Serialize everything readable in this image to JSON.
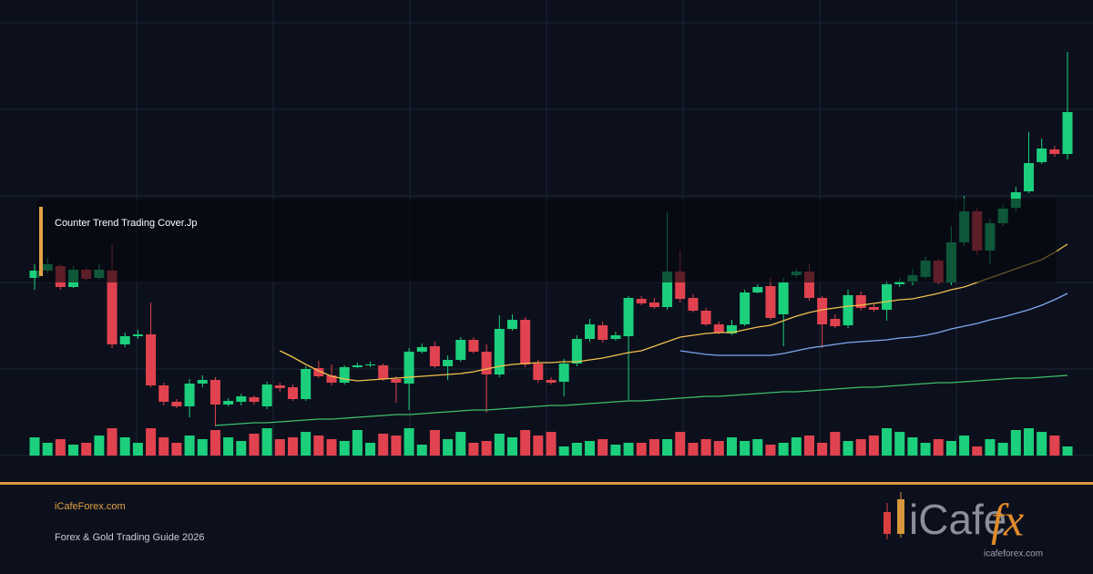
{
  "chart_data": {
    "type": "candlestick",
    "title": "Counter Trend Trading Cover.Jp",
    "categories": [
      null,
      null,
      null,
      null,
      null,
      null,
      null,
      null,
      null,
      null,
      null,
      null,
      null,
      null,
      null,
      null,
      null,
      null,
      null,
      null,
      null,
      null,
      null,
      null,
      null,
      null,
      null,
      null,
      null,
      null,
      null,
      null,
      null,
      null,
      null,
      null,
      null,
      null,
      null,
      null,
      null,
      null,
      null,
      null,
      null,
      null,
      null,
      null,
      null,
      null,
      null,
      null,
      null,
      null,
      null,
      null,
      null,
      null,
      null,
      null,
      null,
      null,
      null,
      null,
      null,
      null,
      null,
      null,
      null,
      null,
      null,
      null,
      null,
      null,
      null,
      null,
      null,
      null,
      null,
      null,
      null
    ],
    "ylim": [
      0,
      500
    ],
    "up_color": "#1ccf7c",
    "down_color": "#e0434f",
    "ohlc": [
      [
        195,
        210,
        182,
        203
      ],
      [
        203,
        217,
        200,
        210
      ],
      [
        208,
        210,
        182,
        185
      ],
      [
        185,
        208,
        184,
        204
      ],
      [
        204,
        206,
        192,
        194
      ],
      [
        195,
        210,
        193,
        204
      ],
      [
        203,
        232,
        118,
        122
      ],
      [
        122,
        135,
        119,
        131
      ],
      [
        131,
        138,
        128,
        133
      ],
      [
        133,
        168,
        75,
        77
      ],
      [
        77,
        80,
        55,
        59
      ],
      [
        59,
        62,
        52,
        54
      ],
      [
        54,
        84,
        42,
        79
      ],
      [
        79,
        88,
        75,
        83
      ],
      [
        83,
        86,
        32,
        56
      ],
      [
        56,
        63,
        54,
        60
      ],
      [
        59,
        68,
        55,
        65
      ],
      [
        64,
        66,
        56,
        59
      ],
      [
        54,
        81,
        51,
        78
      ],
      [
        77,
        80,
        70,
        74
      ],
      [
        75,
        78,
        60,
        62
      ],
      [
        62,
        98,
        60,
        95
      ],
      [
        96,
        104,
        85,
        87
      ],
      [
        88,
        100,
        77,
        80
      ],
      [
        80,
        99,
        78,
        97
      ],
      [
        97,
        102,
        96,
        99
      ],
      [
        99,
        103,
        97,
        100
      ],
      [
        99,
        101,
        82,
        84
      ],
      [
        84,
        87,
        58,
        80
      ],
      [
        79,
        118,
        50,
        114
      ],
      [
        114,
        123,
        112,
        119
      ],
      [
        120,
        125,
        96,
        98
      ],
      [
        98,
        110,
        83,
        105
      ],
      [
        105,
        130,
        103,
        127
      ],
      [
        127,
        130,
        112,
        114
      ],
      [
        114,
        122,
        47,
        89
      ],
      [
        89,
        154,
        86,
        139
      ],
      [
        139,
        155,
        137,
        149
      ],
      [
        149,
        152,
        97,
        100
      ],
      [
        101,
        105,
        80,
        83
      ],
      [
        83,
        86,
        78,
        80
      ],
      [
        81,
        106,
        65,
        101
      ],
      [
        101,
        132,
        98,
        128
      ],
      [
        128,
        150,
        125,
        144
      ],
      [
        143,
        147,
        124,
        127
      ],
      [
        128,
        136,
        126,
        132
      ],
      [
        131,
        175,
        61,
        173
      ],
      [
        172,
        175,
        165,
        167
      ],
      [
        168,
        173,
        161,
        163
      ],
      [
        163,
        267,
        160,
        202
      ],
      [
        202,
        225,
        168,
        172
      ],
      [
        173,
        177,
        157,
        159
      ],
      [
        159,
        162,
        142,
        144
      ],
      [
        144,
        147,
        133,
        135
      ],
      [
        134,
        149,
        132,
        143
      ],
      [
        144,
        182,
        142,
        179
      ],
      [
        179,
        188,
        178,
        185
      ],
      [
        186,
        195,
        149,
        151
      ],
      [
        155,
        195,
        120,
        190
      ],
      [
        198,
        205,
        195,
        202
      ],
      [
        202,
        211,
        170,
        173
      ],
      [
        173,
        175,
        118,
        144
      ],
      [
        150,
        155,
        140,
        142
      ],
      [
        143,
        182,
        140,
        176
      ],
      [
        176,
        180,
        159,
        162
      ],
      [
        163,
        166,
        158,
        160
      ],
      [
        160,
        192,
        148,
        188
      ],
      [
        188,
        195,
        185,
        191
      ],
      [
        191,
        205,
        187,
        198
      ],
      [
        196,
        218,
        194,
        214
      ],
      [
        214,
        216,
        188,
        190
      ],
      [
        190,
        252,
        187,
        234
      ],
      [
        234,
        285,
        230,
        268
      ],
      [
        268,
        272,
        220,
        225
      ],
      [
        225,
        260,
        210,
        255
      ],
      [
        255,
        275,
        252,
        271
      ],
      [
        272,
        295,
        268,
        289
      ],
      [
        290,
        355,
        288,
        321
      ],
      [
        322,
        348,
        320,
        337
      ],
      [
        336,
        340,
        328,
        331
      ],
      [
        331,
        443,
        325,
        377
      ]
    ],
    "volume": [
      20,
      14,
      18,
      12,
      14,
      22,
      30,
      20,
      14,
      30,
      20,
      14,
      22,
      18,
      28,
      20,
      16,
      24,
      30,
      18,
      20,
      26,
      22,
      18,
      16,
      28,
      14,
      24,
      22,
      30,
      12,
      28,
      18,
      26,
      14,
      16,
      24,
      20,
      28,
      22,
      26,
      10,
      14,
      16,
      18,
      12,
      14,
      14,
      18,
      18,
      26,
      14,
      18,
      16,
      20,
      16,
      18,
      12,
      14,
      20,
      22,
      14,
      26,
      16,
      18,
      22,
      30,
      26,
      20,
      14,
      18,
      16,
      22,
      10,
      18,
      14,
      28,
      30,
      26,
      22,
      10
    ],
    "overlays": [
      {
        "color": "#f2c14e",
        "values": [
          null,
          null,
          null,
          null,
          null,
          null,
          null,
          null,
          null,
          null,
          null,
          null,
          null,
          null,
          null,
          null,
          null,
          null,
          null,
          115,
          108,
          100,
          93,
          87,
          84,
          82,
          83,
          84,
          85,
          86,
          87,
          88,
          89,
          90,
          92,
          95,
          98,
          100,
          101,
          102,
          102,
          103,
          103,
          105,
          107,
          110,
          113,
          115,
          120,
          125,
          130,
          132,
          134,
          135,
          135,
          138,
          141,
          143,
          148,
          153,
          157,
          160,
          162,
          164,
          165,
          167,
          169,
          171,
          172,
          175,
          178,
          182,
          185,
          190,
          195,
          200,
          205,
          210,
          215,
          223,
          232
        ]
      },
      {
        "color": "#7fa7f0",
        "values": [
          null,
          null,
          null,
          null,
          null,
          null,
          null,
          null,
          null,
          null,
          null,
          null,
          null,
          null,
          null,
          null,
          null,
          null,
          null,
          null,
          null,
          null,
          null,
          null,
          null,
          null,
          null,
          null,
          null,
          null,
          null,
          null,
          null,
          null,
          null,
          null,
          null,
          null,
          null,
          null,
          null,
          null,
          null,
          null,
          null,
          null,
          null,
          null,
          null,
          null,
          115,
          113,
          111,
          110,
          110,
          110,
          110,
          110,
          112,
          115,
          118,
          120,
          122,
          124,
          125,
          126,
          127,
          129,
          130,
          132,
          135,
          139,
          142,
          145,
          149,
          152,
          156,
          160,
          165,
          171,
          178
        ]
      },
      {
        "color": "#3fbf6a",
        "values": [
          null,
          null,
          null,
          null,
          null,
          null,
          null,
          null,
          null,
          null,
          null,
          null,
          null,
          null,
          33,
          34,
          35,
          36,
          36,
          37,
          38,
          39,
          40,
          40,
          41,
          42,
          43,
          44,
          45,
          45,
          46,
          47,
          48,
          49,
          50,
          50,
          51,
          52,
          53,
          54,
          55,
          55,
          56,
          57,
          58,
          59,
          60,
          60,
          61,
          62,
          63,
          64,
          65,
          65,
          66,
          67,
          68,
          69,
          70,
          70,
          71,
          72,
          73,
          74,
          75,
          75,
          76,
          77,
          78,
          79,
          80,
          80,
          81,
          82,
          83,
          84,
          85,
          85,
          86,
          87,
          88
        ]
      }
    ]
  },
  "footer": {
    "site": "iCafeForex.com",
    "subtitle": "Forex & Gold Trading Guide 2026",
    "logo_main": "iCafe",
    "logo_accent": "fx",
    "logo_url": "icafeforex.com"
  }
}
